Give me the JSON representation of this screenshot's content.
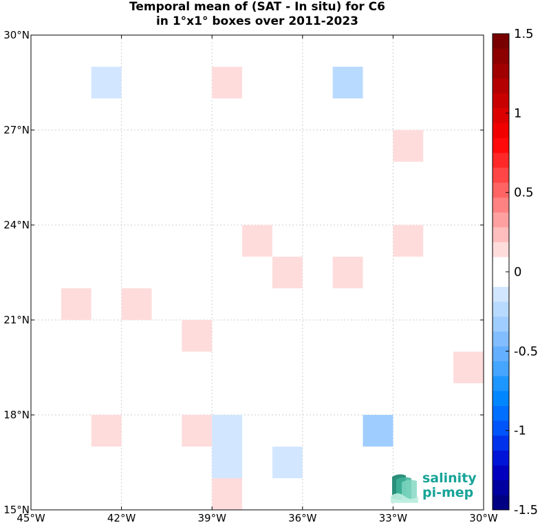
{
  "chart_data": {
    "type": "heatmap",
    "title": "Temporal mean of (SAT - In situ) for C6",
    "subtitle": "in 1°x1° boxes over 2011-2023",
    "xlabel": "",
    "ylabel": "",
    "xlim": [
      -45,
      -30
    ],
    "ylim": [
      15,
      30
    ],
    "x_tick_values": [
      -45,
      -42,
      -39,
      -36,
      -33,
      -30
    ],
    "x_tick_labels": [
      "45°W",
      "42°W",
      "39°W",
      "36°W",
      "33°W",
      "30°W"
    ],
    "y_tick_values": [
      15,
      18,
      21,
      24,
      27,
      30
    ],
    "y_tick_labels": [
      "15°N",
      "18°N",
      "21°N",
      "24°N",
      "27°N",
      "30°N"
    ],
    "grid": true,
    "cells": [
      {
        "lon": -43,
        "lat": 28,
        "value": -0.15
      },
      {
        "lon": -39,
        "lat": 28,
        "value": 0.15
      },
      {
        "lon": -35,
        "lat": 28,
        "value": -0.25
      },
      {
        "lon": -33,
        "lat": 26,
        "value": 0.15
      },
      {
        "lon": -38,
        "lat": 23,
        "value": 0.15
      },
      {
        "lon": -33,
        "lat": 23,
        "value": 0.15
      },
      {
        "lon": -37,
        "lat": 22,
        "value": 0.15
      },
      {
        "lon": -35,
        "lat": 22,
        "value": 0.15
      },
      {
        "lon": -44,
        "lat": 21,
        "value": 0.15
      },
      {
        "lon": -42,
        "lat": 21,
        "value": 0.15
      },
      {
        "lon": -40,
        "lat": 20,
        "value": 0.15
      },
      {
        "lon": -31,
        "lat": 19,
        "value": 0.15
      },
      {
        "lon": -43,
        "lat": 17,
        "value": 0.15
      },
      {
        "lon": -40,
        "lat": 17,
        "value": 0.15
      },
      {
        "lon": -39,
        "lat": 17,
        "value": -0.15
      },
      {
        "lon": -34,
        "lat": 17,
        "value": -0.35
      },
      {
        "lon": -39,
        "lat": 16,
        "value": -0.15
      },
      {
        "lon": -37,
        "lat": 16,
        "value": -0.15
      },
      {
        "lon": -39,
        "lat": 15,
        "value": 0.15
      }
    ],
    "colorbar": {
      "min": -1.5,
      "max": 1.5,
      "tick_values": [
        1.5,
        1,
        0.5,
        0,
        -0.5,
        -1,
        -1.5
      ],
      "tick_labels": [
        "1.5",
        "1",
        "0.5",
        "0",
        "-0.5",
        "-1",
        "-1.5"
      ]
    }
  },
  "logo": {
    "line1": "salinity",
    "line2": "pi-mep"
  }
}
